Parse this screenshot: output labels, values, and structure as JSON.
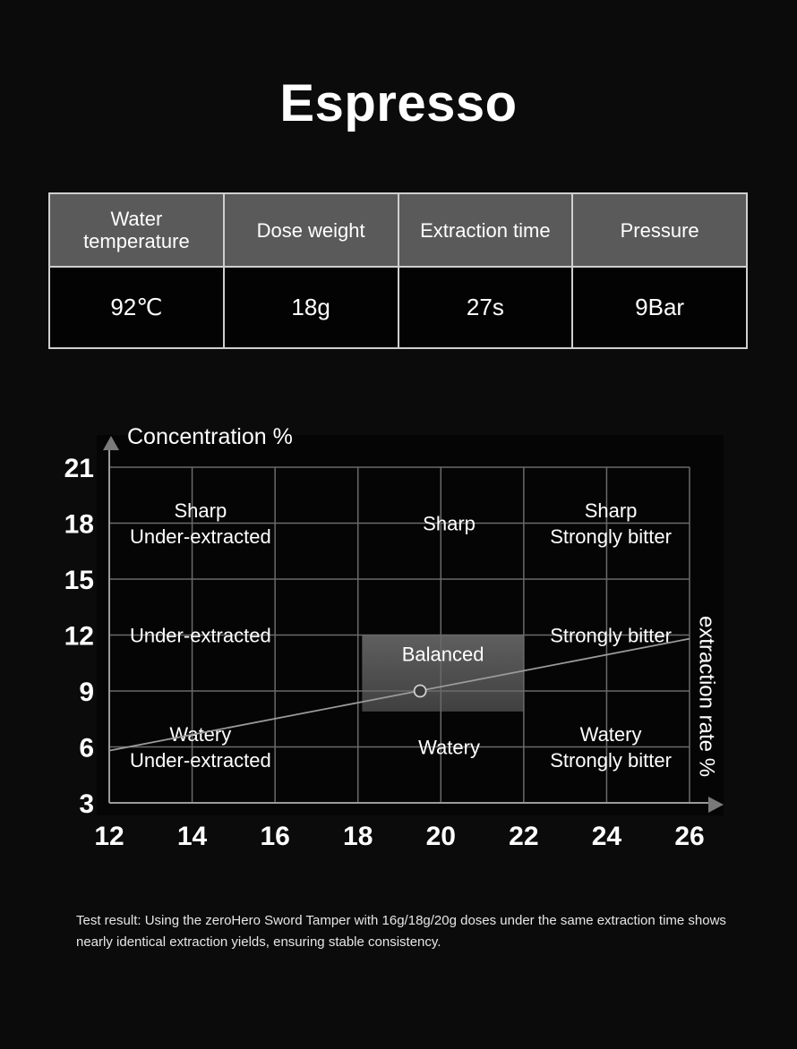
{
  "title": "Espresso",
  "table": {
    "headers": [
      "Water\ntemperature",
      "Dose weight",
      "Extraction time",
      "Pressure"
    ],
    "values": [
      "92℃",
      "18g",
      "27s",
      "9Bar"
    ]
  },
  "chart_data": {
    "type": "scatter",
    "ylabel": "Concentration %",
    "xlabel": "extraction rate %",
    "x_ticks": [
      12,
      14,
      16,
      18,
      20,
      22,
      24,
      26
    ],
    "y_ticks": [
      3,
      6,
      9,
      12,
      15,
      18,
      21
    ],
    "xlim": [
      12,
      26
    ],
    "ylim": [
      3,
      21
    ],
    "grid": true,
    "grid_x": [
      12,
      14,
      16,
      18,
      20,
      22,
      24,
      26
    ],
    "grid_y": [
      3,
      6,
      9,
      12,
      15,
      18,
      21
    ],
    "regions": [
      {
        "label": "Sharp\nUnder-extracted",
        "x": 14.2,
        "y": 18
      },
      {
        "label": "Sharp",
        "x": 20.2,
        "y": 18
      },
      {
        "label": "Sharp\nStrongly bitter",
        "x": 24.1,
        "y": 18
      },
      {
        "label": "Under-extracted",
        "x": 14.2,
        "y": 12
      },
      {
        "label": "Strongly bitter",
        "x": 24.1,
        "y": 12
      },
      {
        "label": "Watery\nUnder-extracted",
        "x": 14.2,
        "y": 6
      },
      {
        "label": "Watery",
        "x": 20.2,
        "y": 6
      },
      {
        "label": "Watery\nStrongly bitter",
        "x": 24.1,
        "y": 6
      }
    ],
    "balanced_zone": {
      "label": "Balanced",
      "x_range": [
        18.1,
        22
      ],
      "y_range": [
        7.9,
        12
      ]
    },
    "trend_line": {
      "points": [
        [
          12,
          5.8
        ],
        [
          26,
          11.8
        ]
      ]
    },
    "point": {
      "x": 19.5,
      "y": 9
    },
    "colors": {
      "grid": "#6a6a6a",
      "trend": "#9a9a9a",
      "zone": "#555555"
    }
  },
  "footnote": "Test result: Using the zeroHero Sword Tamper with 16g/18g/20g doses under the same extraction time shows nearly identical extraction yields, ensuring stable consistency."
}
